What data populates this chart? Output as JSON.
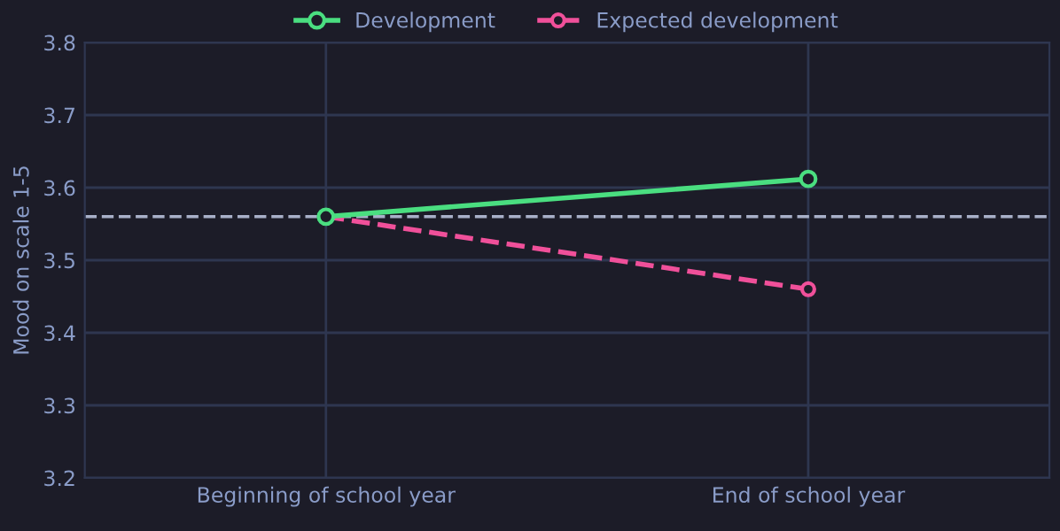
{
  "chart_data": {
    "type": "line",
    "ylabel": "Mood on scale 1-5",
    "categories": [
      "Beginning of school year",
      "End of school year"
    ],
    "series": [
      {
        "name": "Development",
        "color": "#4ade80",
        "values": [
          3.56,
          3.612
        ],
        "line_style": "solid"
      },
      {
        "name": "Expected development",
        "color": "#f0509a",
        "values": [
          3.56,
          3.46
        ],
        "line_style": "dashed"
      }
    ],
    "ylim": [
      3.2,
      3.8
    ],
    "yticks": [
      3.2,
      3.3,
      3.4,
      3.5,
      3.6,
      3.7,
      3.8
    ],
    "ref_lines": [
      {
        "axis": "y",
        "value": 3.56,
        "color": "#a8b0c8",
        "line_style": "dashed"
      }
    ],
    "grid": true,
    "legend": "top",
    "marker": "circle"
  }
}
